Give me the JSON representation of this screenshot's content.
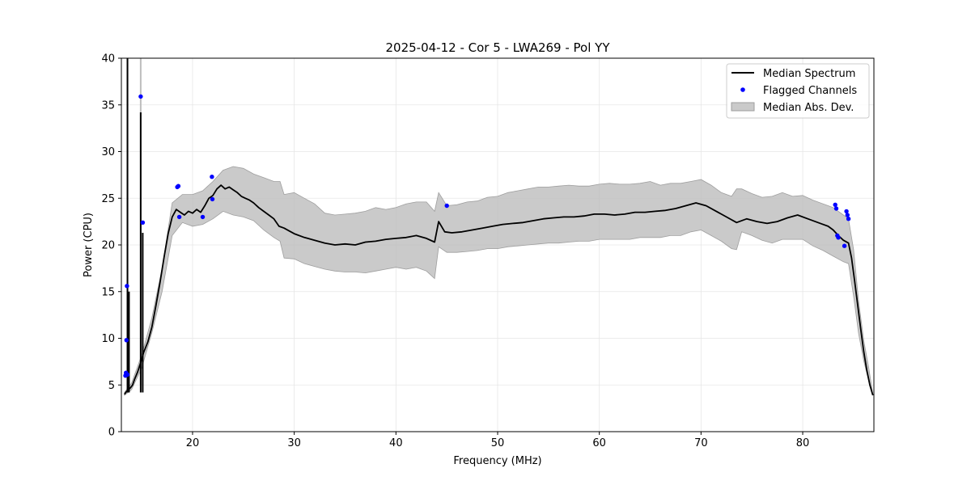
{
  "chart_data": {
    "type": "line",
    "title": "2025-04-12 - Cor 5 - LWA269 - Pol YY",
    "xlabel": "Frequency (MHz)",
    "ylabel": "Power (CPU)",
    "xlim": [
      13.0,
      87.0
    ],
    "ylim": [
      0,
      40
    ],
    "xticks": [
      20,
      30,
      40,
      50,
      60,
      70,
      80
    ],
    "yticks": [
      0,
      5,
      10,
      15,
      20,
      25,
      30,
      35,
      40
    ],
    "grid": true,
    "legend_position": "top-right",
    "legend": {
      "median": "Median Spectrum",
      "flagged": "Flagged Channels",
      "mad": "Median Abs. Dev."
    },
    "series": [
      {
        "name": "Median Spectrum",
        "type": "line",
        "color": "#000000",
        "x": [
          13.3,
          13.5,
          13.7,
          13.9,
          14.1,
          14.3,
          14.6,
          14.9,
          15.2,
          15.6,
          16.0,
          16.4,
          16.8,
          17.2,
          17.6,
          18.0,
          18.4,
          18.8,
          19.2,
          19.6,
          20.0,
          20.4,
          20.8,
          21.2,
          21.6,
          22.0,
          22.4,
          22.8,
          23.2,
          23.6,
          24.0,
          24.4,
          24.8,
          25.2,
          25.6,
          26.0,
          26.5,
          27.0,
          27.5,
          28.0,
          28.5,
          29.0,
          29.5,
          30.0,
          31.0,
          32.0,
          33.0,
          34.0,
          35.0,
          36.0,
          37.0,
          38.0,
          39.0,
          40.0,
          41.0,
          42.0,
          43.0,
          43.8,
          44.2,
          44.8,
          45.5,
          46.5,
          47.5,
          48.5,
          49.5,
          50.5,
          51.5,
          52.5,
          53.5,
          54.5,
          55.5,
          56.5,
          57.5,
          58.5,
          59.5,
          60.5,
          61.5,
          62.5,
          63.5,
          64.5,
          65.5,
          66.5,
          67.5,
          68.5,
          69.5,
          70.5,
          71.5,
          72.5,
          73.5,
          74.5,
          75.5,
          76.5,
          77.5,
          78.5,
          79.5,
          80.5,
          81.5,
          82.5,
          83.0,
          83.5,
          84.0,
          84.5,
          84.8,
          85.1,
          85.4,
          85.7,
          86.0,
          86.3,
          86.6,
          86.9
        ],
        "y": [
          4.0,
          4.3,
          4.5,
          4.7,
          5.0,
          5.6,
          6.4,
          7.4,
          8.5,
          9.6,
          11.2,
          13.5,
          16.0,
          18.7,
          21.2,
          23.0,
          23.8,
          23.5,
          23.2,
          23.6,
          23.4,
          23.8,
          23.5,
          24.2,
          25.0,
          25.3,
          26.0,
          26.4,
          26.0,
          26.2,
          25.9,
          25.6,
          25.2,
          25.0,
          24.8,
          24.5,
          24.0,
          23.6,
          23.2,
          22.8,
          22.0,
          21.8,
          21.5,
          21.2,
          20.8,
          20.5,
          20.2,
          20.0,
          20.1,
          20.0,
          20.3,
          20.4,
          20.6,
          20.7,
          20.8,
          21.0,
          20.7,
          20.3,
          22.5,
          21.4,
          21.3,
          21.4,
          21.6,
          21.8,
          22.0,
          22.2,
          22.3,
          22.4,
          22.6,
          22.8,
          22.9,
          23.0,
          23.0,
          23.1,
          23.3,
          23.3,
          23.2,
          23.3,
          23.5,
          23.5,
          23.6,
          23.7,
          23.9,
          24.2,
          24.5,
          24.2,
          23.6,
          23.0,
          22.4,
          22.8,
          22.5,
          22.3,
          22.5,
          22.9,
          23.2,
          22.8,
          22.4,
          22.0,
          21.6,
          21.0,
          20.5,
          20.2,
          18.6,
          16.2,
          13.6,
          11.0,
          8.6,
          6.6,
          5.0,
          3.9
        ]
      },
      {
        "name": "Median Abs. Dev.",
        "type": "band",
        "color": "#bdbdbd",
        "x": [
          13.3,
          14.0,
          15.0,
          16.0,
          17.0,
          18.0,
          19.0,
          20.0,
          21.0,
          22.0,
          23.0,
          24.0,
          25.0,
          26.0,
          27.0,
          28.0,
          28.6,
          29.0,
          30.0,
          31.0,
          32.0,
          33.0,
          34.0,
          35.0,
          36.0,
          37.0,
          38.0,
          39.0,
          40.0,
          41.0,
          42.0,
          43.0,
          43.8,
          44.2,
          45.0,
          46.0,
          47.0,
          48.0,
          49.0,
          50.0,
          51.0,
          52.0,
          53.0,
          54.0,
          55.0,
          56.0,
          57.0,
          58.0,
          59.0,
          60.0,
          61.0,
          62.0,
          63.0,
          64.0,
          65.0,
          66.0,
          67.0,
          68.0,
          69.0,
          70.0,
          71.0,
          72.0,
          73.0,
          73.5,
          74.0,
          75.0,
          76.0,
          77.0,
          78.0,
          79.0,
          80.0,
          81.0,
          82.0,
          83.0,
          84.0,
          84.5,
          85.0,
          85.5,
          86.0,
          86.5,
          86.9
        ],
        "lower": [
          3.9,
          4.5,
          6.8,
          10.6,
          15.0,
          21.0,
          22.4,
          22.0,
          22.2,
          22.8,
          23.6,
          23.2,
          23.0,
          22.6,
          21.6,
          20.8,
          20.4,
          18.6,
          18.5,
          18.0,
          17.7,
          17.4,
          17.2,
          17.1,
          17.1,
          17.0,
          17.2,
          17.4,
          17.6,
          17.4,
          17.6,
          17.2,
          16.4,
          19.8,
          19.2,
          19.2,
          19.3,
          19.4,
          19.6,
          19.6,
          19.8,
          19.9,
          20.0,
          20.1,
          20.2,
          20.2,
          20.3,
          20.4,
          20.4,
          20.6,
          20.6,
          20.6,
          20.6,
          20.8,
          20.8,
          20.8,
          21.0,
          21.0,
          21.4,
          21.6,
          21.0,
          20.4,
          19.6,
          19.5,
          21.4,
          21.0,
          20.5,
          20.2,
          20.6,
          20.6,
          20.6,
          19.9,
          19.4,
          18.8,
          18.2,
          18.0,
          14.5,
          10.5,
          7.6,
          5.4,
          3.9
        ],
        "upper": [
          4.2,
          5.2,
          8.2,
          12.2,
          17.5,
          24.5,
          25.4,
          25.4,
          25.8,
          26.8,
          28.0,
          28.4,
          28.2,
          27.6,
          27.2,
          26.8,
          26.8,
          25.4,
          25.6,
          25.0,
          24.4,
          23.4,
          23.2,
          23.3,
          23.4,
          23.6,
          24.0,
          23.8,
          24.0,
          24.4,
          24.6,
          24.6,
          23.6,
          25.6,
          24.2,
          24.3,
          24.6,
          24.7,
          25.1,
          25.2,
          25.6,
          25.8,
          26.0,
          26.2,
          26.2,
          26.3,
          26.4,
          26.3,
          26.3,
          26.5,
          26.6,
          26.5,
          26.5,
          26.6,
          26.8,
          26.4,
          26.6,
          26.6,
          26.8,
          27.0,
          26.4,
          25.6,
          25.2,
          26.0,
          26.0,
          25.5,
          25.1,
          25.2,
          25.6,
          25.2,
          25.3,
          24.8,
          24.4,
          24.0,
          23.2,
          22.8,
          19.5,
          14.0,
          9.8,
          6.8,
          4.0
        ]
      },
      {
        "name": "Flagged Channels",
        "type": "scatter",
        "color": "#0000ff",
        "x": [
          13.4,
          13.45,
          13.5,
          13.55,
          13.6,
          14.9,
          15.1,
          18.5,
          18.6,
          18.7,
          21.0,
          21.9,
          21.95,
          45.0,
          83.2,
          83.3,
          83.4,
          83.5,
          84.1,
          84.3,
          84.4,
          84.5
        ],
        "y": [
          6.0,
          6.3,
          9.8,
          15.6,
          6.1,
          35.9,
          22.4,
          26.2,
          26.3,
          23.0,
          23.0,
          27.3,
          24.9,
          24.2,
          24.3,
          23.9,
          21.0,
          20.8,
          19.9,
          23.6,
          23.2,
          22.8
        ]
      }
    ],
    "spikes": [
      {
        "x": 13.6,
        "y": 40.0
      },
      {
        "x": 13.75,
        "y": 15.0
      },
      {
        "x": 14.9,
        "y": 34.2
      },
      {
        "x": 15.1,
        "y": 21.3
      }
    ],
    "spike_band_tops": [
      {
        "x": 13.6,
        "y": 40.0
      },
      {
        "x": 14.9,
        "y": 40.0
      }
    ]
  }
}
